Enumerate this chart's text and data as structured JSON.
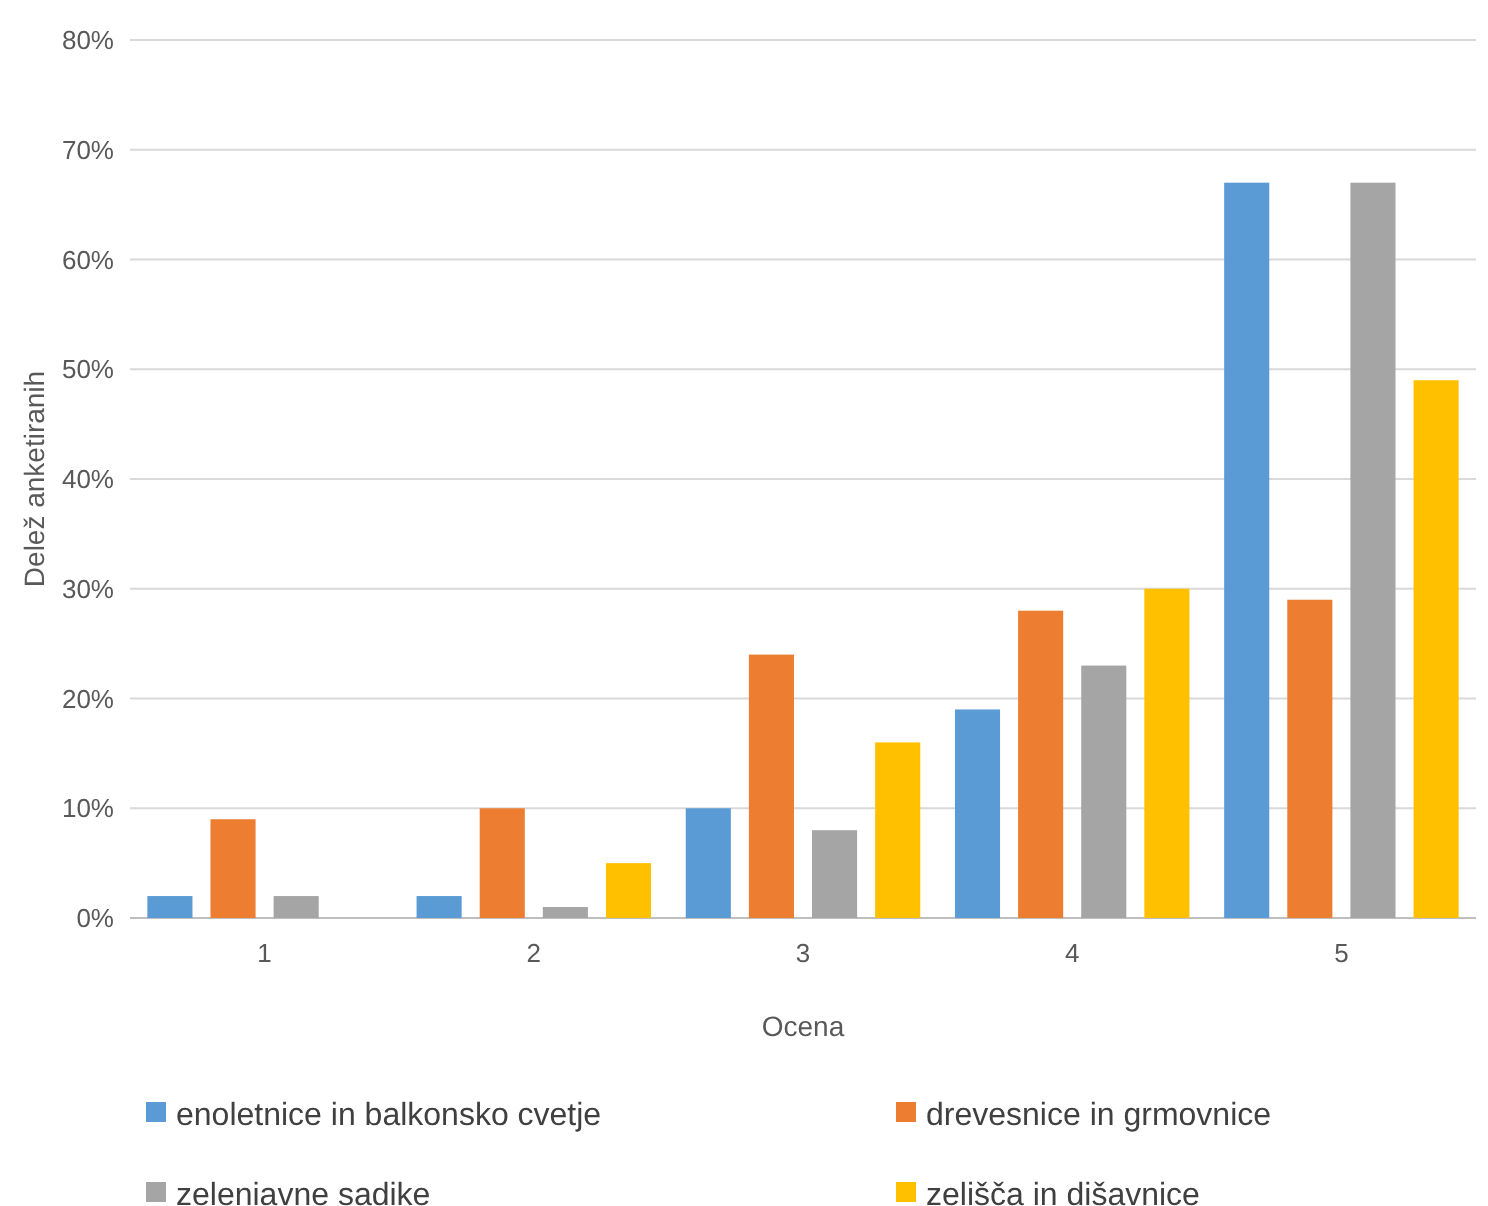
{
  "chart_data": {
    "type": "bar",
    "xlabel": "Ocena",
    "ylabel": "Delež anketiranih",
    "categories": [
      "1",
      "2",
      "3",
      "4",
      "5"
    ],
    "series": [
      {
        "name": "enoletnice in balkonsko cvetje",
        "color": "#5b9bd5",
        "values": [
          2,
          2,
          10,
          19,
          67
        ]
      },
      {
        "name": "drevesnice in grmovnice",
        "color": "#ed7d31",
        "values": [
          9,
          10,
          24,
          28,
          29
        ]
      },
      {
        "name": "zeleniavne sadike",
        "color": "#a5a5a5",
        "values": [
          2,
          1,
          8,
          23,
          67
        ]
      },
      {
        "name": "zelišča in dišavnice",
        "color": "#ffc000",
        "values": [
          0,
          5,
          16,
          30,
          49
        ]
      }
    ],
    "ylim": [
      0,
      80
    ],
    "yticks": [
      {
        "value": 0,
        "label": "0%"
      },
      {
        "value": 10,
        "label": "10%"
      },
      {
        "value": 20,
        "label": "20%"
      },
      {
        "value": 30,
        "label": "30%"
      },
      {
        "value": 40,
        "label": "40%"
      },
      {
        "value": 50,
        "label": "50%"
      },
      {
        "value": 60,
        "label": "60%"
      },
      {
        "value": 70,
        "label": "70%"
      },
      {
        "value": 80,
        "label": "80%"
      }
    ],
    "grid": "y",
    "legend": "bottom"
  }
}
